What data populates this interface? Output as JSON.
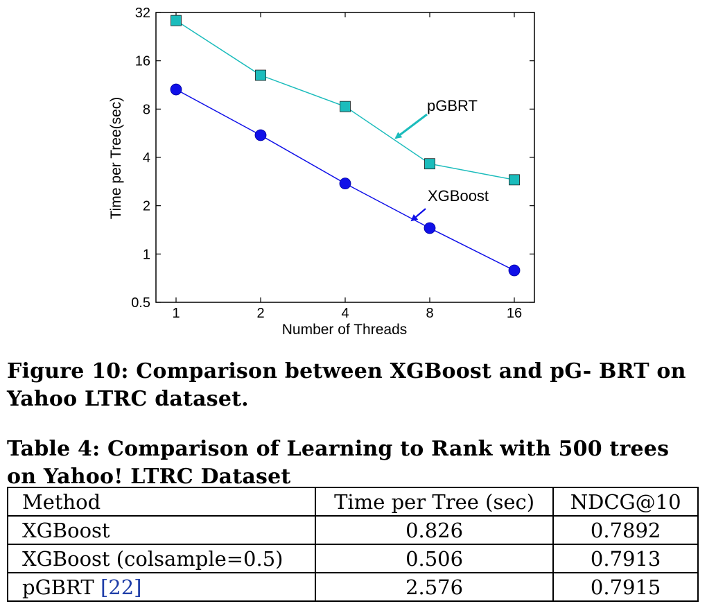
{
  "chart_data": {
    "type": "line",
    "title": "",
    "xlabel": "Number of Threads",
    "ylabel": "Time per Tree(sec)",
    "x": [
      1,
      2,
      4,
      8,
      16
    ],
    "x_ticks": [
      "1",
      "2",
      "4",
      "8",
      "16"
    ],
    "y_ticks": [
      "0.5",
      "1",
      "2",
      "4",
      "8",
      "16",
      "32"
    ],
    "y_tick_values": [
      0.5,
      1,
      2,
      4,
      8,
      16,
      32
    ],
    "ylim": [
      0.5,
      32
    ],
    "yscale": "log2",
    "grid": false,
    "series": [
      {
        "name": "pGBRT",
        "marker": "square",
        "color": "#1bbcbc",
        "values": [
          28.5,
          13.0,
          8.3,
          3.65,
          2.9
        ]
      },
      {
        "name": "XGBoost",
        "marker": "circle",
        "color": "#1010e8",
        "values": [
          10.6,
          5.5,
          2.75,
          1.45,
          0.79
        ]
      }
    ],
    "annotations": [
      {
        "text": "pGBRT",
        "arrow_color": "#1bbcbc"
      },
      {
        "text": "XGBoost",
        "arrow_color": "#1010e8"
      }
    ]
  },
  "figure_caption": "Figure 10: Comparison between XGBoost and pG- BRT on Yahoo LTRC dataset.",
  "table": {
    "caption": "Table 4: Comparison of Learning to Rank with 500 trees on Yahoo! LTRC Dataset",
    "headers": [
      "Method",
      "Time per Tree (sec)",
      "NDCG@10"
    ],
    "rows": [
      {
        "method": "XGBoost",
        "cite": "",
        "time": "0.826",
        "ndcg": "0.7892"
      },
      {
        "method": "XGBoost (colsample=0.5)",
        "cite": "",
        "time": "0.506",
        "ndcg": "0.7913"
      },
      {
        "method": "pGBRT ",
        "cite": "[22]",
        "time": "2.576",
        "ndcg": "0.7915"
      }
    ]
  }
}
